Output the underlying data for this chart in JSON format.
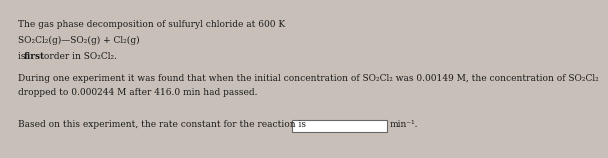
{
  "bg_color": "#c8c0b8",
  "text_color": "#1a1a1a",
  "line1": "The gas phase decomposition of sulfuryl chloride at 600 K",
  "line2": "SO₂Cl₂(g)—SO₂(g) + Cl₂(g)",
  "line3a": "is ",
  "line3b": "first",
  "line3c": " order in SO₂Cl₂.",
  "line4": "During one experiment it was found that when the initial concentration of SO₂Cl₂ was 0.00149 M, the concentration of SO₂Cl₂",
  "line5": "dropped to 0.000244 M after 416.0 min had passed.",
  "line6a": "Based on this experiment, the rate constant for the reaction is",
  "line6b": "min⁻¹.",
  "fontsize": 6.5,
  "bold_fontsize": 6.5
}
